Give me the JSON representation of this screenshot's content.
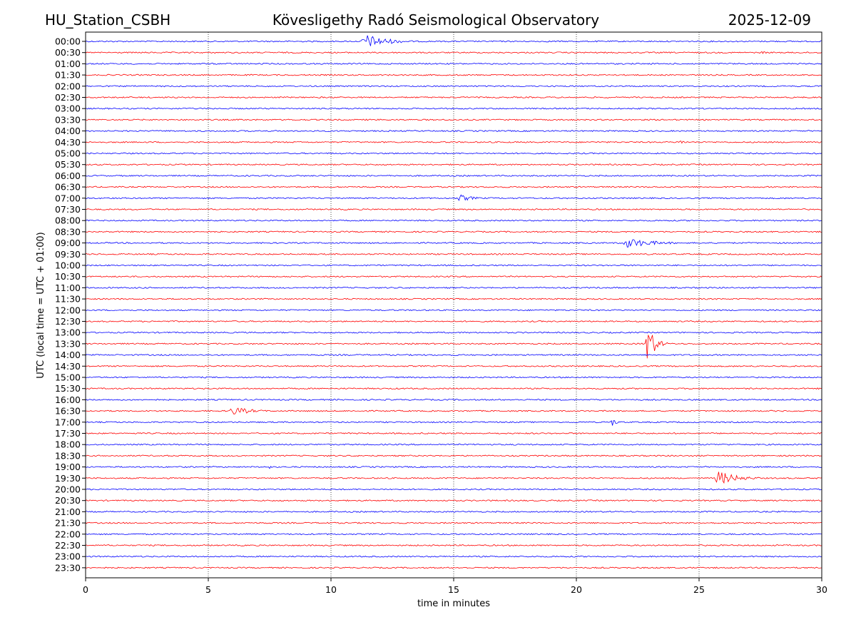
{
  "header": {
    "station": "HU_Station_CSBH",
    "observatory": "Kövesligethy Radó Seismological Observatory",
    "date": "2025-12-09"
  },
  "chart_data": {
    "type": "line",
    "title": "Kövesligethy Radó Seismological Observatory",
    "xlabel": "time in minutes",
    "ylabel": "UTC (local time = UTC + 01:00)",
    "xlim": [
      0,
      30
    ],
    "x_ticks": [
      "0",
      "5",
      "10",
      "15",
      "20",
      "25",
      "30"
    ],
    "x_tick_values": [
      0,
      5,
      10,
      15,
      20,
      25,
      30
    ],
    "gridlines_x": [
      5,
      10,
      15,
      20,
      25
    ],
    "row_labels": [
      "00:00",
      "00:30",
      "01:00",
      "01:30",
      "02:00",
      "02:30",
      "03:00",
      "03:30",
      "04:00",
      "04:30",
      "05:00",
      "05:30",
      "06:00",
      "06:30",
      "07:00",
      "07:30",
      "08:00",
      "08:30",
      "09:00",
      "09:30",
      "10:00",
      "10:30",
      "11:00",
      "11:30",
      "12:00",
      "12:30",
      "13:00",
      "13:30",
      "14:00",
      "14:30",
      "15:00",
      "15:30",
      "16:00",
      "16:30",
      "17:00",
      "17:30",
      "18:00",
      "18:30",
      "19:00",
      "19:30",
      "20:00",
      "20:30",
      "21:00",
      "21:30",
      "22:00",
      "22:30",
      "23:00",
      "23:30"
    ],
    "colors": [
      "#0000ff",
      "#ff0000"
    ],
    "events": [
      {
        "row": "00:00",
        "start_min": 11.2,
        "duration_min": 2.8,
        "peak": 10
      },
      {
        "row": "00:30",
        "start_min": 27.5,
        "duration_min": 0.8,
        "peak": 2
      },
      {
        "row": "04:30",
        "start_min": 24.2,
        "duration_min": 0.4,
        "peak": 6
      },
      {
        "row": "07:00",
        "start_min": 15.1,
        "duration_min": 1.8,
        "peak": 5
      },
      {
        "row": "09:00",
        "start_min": 21.8,
        "duration_min": 3.5,
        "peak": 7
      },
      {
        "row": "13:30",
        "start_min": 22.8,
        "duration_min": 0.9,
        "peak": 32
      },
      {
        "row": "16:30",
        "start_min": 5.8,
        "duration_min": 2.5,
        "peak": 6
      },
      {
        "row": "17:00",
        "start_min": 21.4,
        "duration_min": 0.6,
        "peak": 6
      },
      {
        "row": "19:00",
        "start_min": 7.45,
        "duration_min": 0.15,
        "peak": 6
      },
      {
        "row": "19:30",
        "start_min": 25.6,
        "duration_min": 2.5,
        "peak": 10
      }
    ]
  }
}
